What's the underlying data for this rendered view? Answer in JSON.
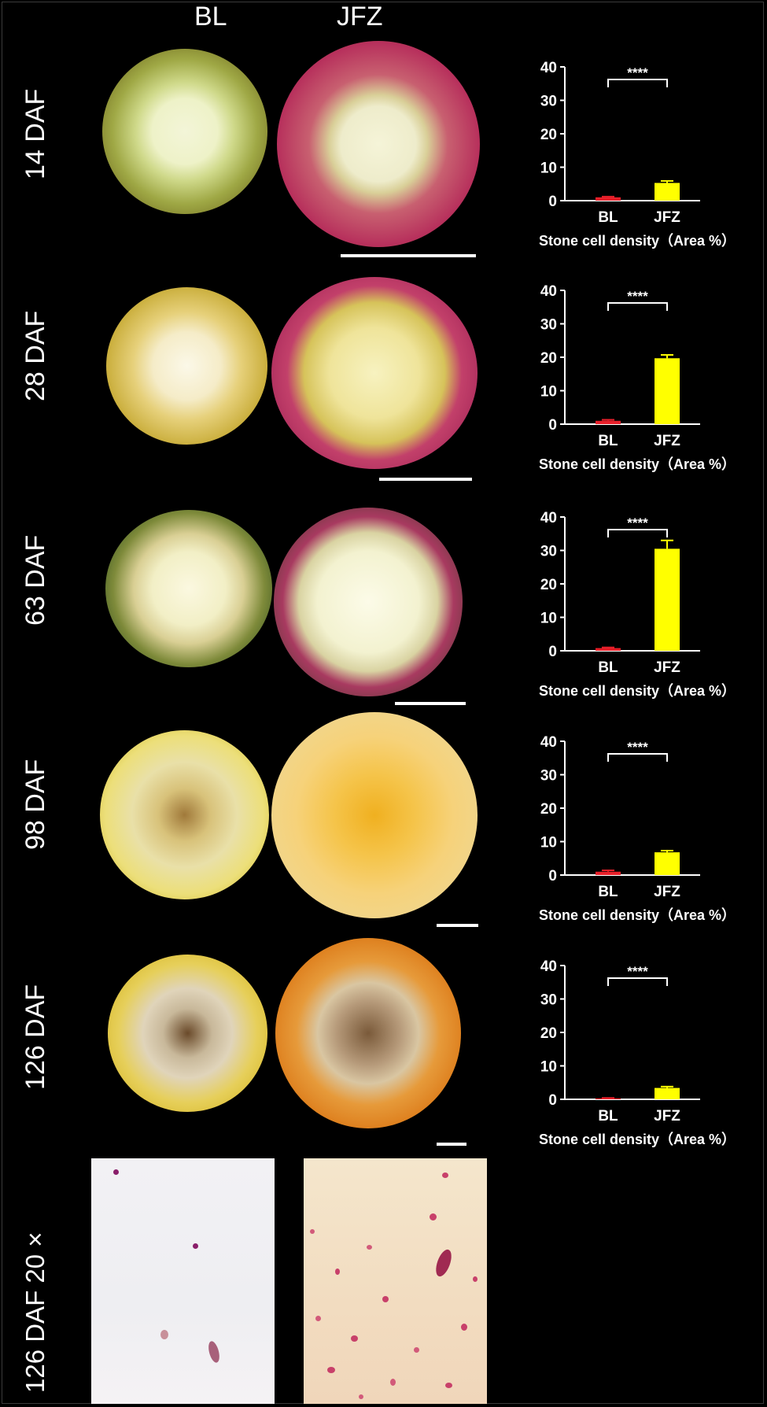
{
  "columns": {
    "left": "BL",
    "right": "JFZ"
  },
  "rows": [
    {
      "label": "14 DAF"
    },
    {
      "label": "28 DAF"
    },
    {
      "label": "63 DAF"
    },
    {
      "label": "98 DAF"
    },
    {
      "label": "126 DAF"
    },
    {
      "label": "126 DAF 20 ×"
    }
  ],
  "colors": {
    "BL": "#e8202a",
    "JFZ": "#ffff00",
    "background": "#000000",
    "axis": "#ffffff"
  },
  "chart_data": [
    {
      "type": "bar",
      "categories": [
        "BL",
        "JFZ"
      ],
      "values": [
        1.0,
        5.3
      ],
      "errors": [
        0.2,
        0.6
      ],
      "ylim": [
        0,
        40
      ],
      "yticks": [
        0,
        10,
        20,
        30,
        40
      ],
      "xlabel": "Stone cell density（Area %）",
      "significance": "****"
    },
    {
      "type": "bar",
      "categories": [
        "BL",
        "JFZ"
      ],
      "values": [
        1.0,
        19.7
      ],
      "errors": [
        0.3,
        1.0
      ],
      "ylim": [
        0,
        40
      ],
      "yticks": [
        0,
        10,
        20,
        30,
        40
      ],
      "xlabel": "Stone cell density（Area %）",
      "significance": "****"
    },
    {
      "type": "bar",
      "categories": [
        "BL",
        "JFZ"
      ],
      "values": [
        0.8,
        30.5
      ],
      "errors": [
        0.2,
        2.5
      ],
      "ylim": [
        0,
        40
      ],
      "yticks": [
        0,
        10,
        20,
        30,
        40
      ],
      "xlabel": "Stone cell density（Area %）",
      "significance": "****"
    },
    {
      "type": "bar",
      "categories": [
        "BL",
        "JFZ"
      ],
      "values": [
        1.0,
        6.8
      ],
      "errors": [
        0.4,
        0.5
      ],
      "ylim": [
        0,
        40
      ],
      "yticks": [
        0,
        10,
        20,
        30,
        40
      ],
      "xlabel": "Stone cell density（Area %）",
      "significance": "****"
    },
    {
      "type": "bar",
      "categories": [
        "BL",
        "JFZ"
      ],
      "values": [
        0.3,
        3.4
      ],
      "errors": [
        0.1,
        0.4
      ],
      "ylim": [
        0,
        40
      ],
      "yticks": [
        0,
        10,
        20,
        30,
        40
      ],
      "xlabel": "Stone cell density（Area %）",
      "significance": "****"
    }
  ]
}
